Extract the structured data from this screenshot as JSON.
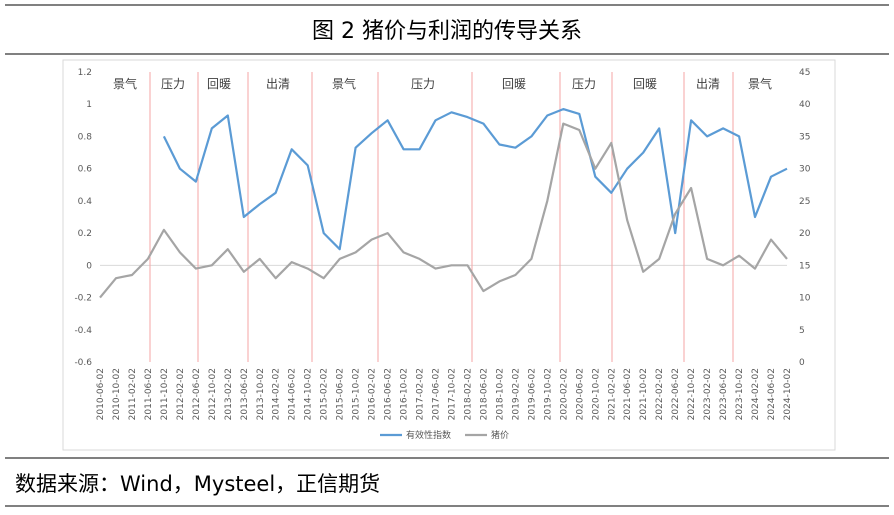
{
  "header": {
    "title": "图 2 猪价与利润的传导关系"
  },
  "source": "数据来源：Wind，Mysteel，正信期货",
  "chart_data": {
    "type": "line",
    "categories": [
      "2010-06-02",
      "2010-10-02",
      "2011-02-02",
      "2011-06-02",
      "2011-10-02",
      "2012-02-02",
      "2012-06-02",
      "2012-10-02",
      "2013-02-02",
      "2013-06-02",
      "2013-10-02",
      "2014-02-02",
      "2014-06-02",
      "2014-10-02",
      "2015-02-02",
      "2015-06-02",
      "2015-10-02",
      "2016-02-02",
      "2016-06-02",
      "2016-10-02",
      "2017-02-02",
      "2017-06-02",
      "2017-10-02",
      "2018-02-02",
      "2018-06-02",
      "2018-10-02",
      "2019-02-02",
      "2019-06-02",
      "2019-10-02",
      "2020-02-02",
      "2020-06-02",
      "2020-10-02",
      "2021-02-02",
      "2021-06-02",
      "2021-10-02",
      "2022-02-02",
      "2022-06-02",
      "2022-10-02",
      "2023-02-02",
      "2023-06-02",
      "2023-10-02",
      "2024-02-02",
      "2024-06-02",
      "2024-10-02"
    ],
    "series": [
      {
        "name": "有效性指数",
        "color": "#5b9bd5",
        "values": [
          null,
          null,
          null,
          null,
          0.8,
          0.6,
          0.52,
          0.85,
          0.93,
          0.3,
          0.38,
          0.45,
          0.72,
          0.62,
          0.2,
          0.1,
          0.73,
          0.82,
          0.9,
          0.72,
          0.72,
          0.9,
          0.95,
          0.92,
          0.88,
          0.75,
          0.73,
          0.8,
          0.93,
          0.97,
          0.94,
          0.55,
          0.45,
          0.6,
          0.7,
          0.85,
          0.2,
          0.9,
          0.8,
          0.85,
          0.8,
          0.3,
          0.55,
          0.6
        ]
      },
      {
        "name": "猪价",
        "color": "#a5a5a5",
        "axis": "y2",
        "values": [
          10,
          13,
          13.5,
          16,
          20.5,
          17,
          14.5,
          15,
          17.5,
          14,
          16,
          13,
          15.5,
          14.5,
          13,
          16,
          17,
          19,
          20,
          17,
          16,
          14.5,
          15,
          15,
          11,
          12.5,
          13.5,
          16,
          25,
          37,
          36,
          30,
          34,
          22,
          14,
          16,
          23,
          27,
          16,
          15,
          16.5,
          14.5,
          19,
          16
        ]
      }
    ],
    "annotations": [
      "景气",
      "压力",
      "回暖",
      "出清",
      "景气",
      "压力",
      "回暖",
      "压力",
      "回暖",
      "出清",
      "景气"
    ],
    "ylim": [
      -0.6,
      1.2
    ],
    "yticks": [
      -0.6,
      -0.4,
      -0.2,
      0,
      0.2,
      0.4,
      0.6,
      0.8,
      1,
      1.2
    ],
    "y2lim": [
      0,
      45
    ],
    "y2ticks": [
      0,
      5,
      10,
      15,
      20,
      25,
      30,
      35,
      40,
      45
    ],
    "legend": "bottom",
    "grid": false
  }
}
